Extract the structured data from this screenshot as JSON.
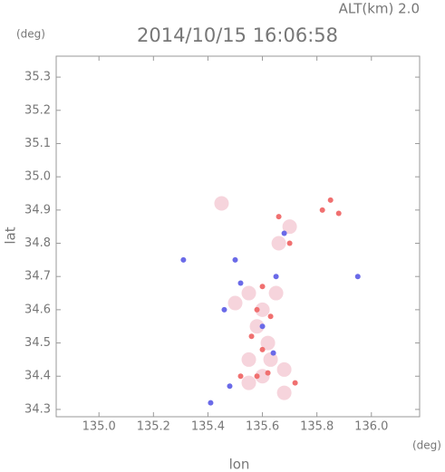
{
  "chart_data": {
    "type": "scatter",
    "title": "2014/10/15 16:06:58",
    "altitude_label": "ALT(km) 2.0",
    "x_label": "lon",
    "y_label": "lat",
    "x_unit": "(deg)",
    "y_unit": "(deg)",
    "xlim": [
      134.843,
      136.177
    ],
    "ylim": [
      34.278,
      35.363
    ],
    "xticks": [
      {
        "value": 135,
        "label": "135.0"
      },
      135.2,
      135.4,
      135.6,
      135.8,
      {
        "value": 136,
        "label": "136.0"
      }
    ],
    "yticks": [
      34.3,
      34.4,
      34.5,
      34.6,
      34.7,
      34.8,
      34.9,
      {
        "value": 35,
        "label": "35.0"
      },
      35.1,
      35.2,
      35.3
    ],
    "grid": false,
    "series": [
      {
        "color": "#f6d4dc",
        "x": [
          135.6,
          135.55,
          135.62,
          135.58,
          135.6,
          135.55,
          135.65,
          135.5,
          135.63,
          135.68,
          135.55,
          135.66,
          135.7,
          135.45,
          135.68
        ],
        "y": [
          34.4,
          34.45,
          34.5,
          34.55,
          34.6,
          34.65,
          34.65,
          34.62,
          34.45,
          34.42,
          34.38,
          34.8,
          34.85,
          34.92,
          34.35
        ]
      },
      {
        "color": "#f07070",
        "x": [
          135.58,
          135.62,
          135.52,
          135.6,
          135.63,
          135.58,
          135.56,
          135.66,
          135.85,
          135.82,
          135.88,
          135.7,
          135.6,
          135.72
        ],
        "y": [
          34.4,
          34.41,
          34.4,
          34.48,
          34.58,
          34.6,
          34.52,
          34.88,
          34.93,
          34.9,
          34.89,
          34.8,
          34.67,
          34.38
        ]
      },
      {
        "color": "#6a6ae8",
        "x": [
          135.41,
          135.95,
          135.48,
          135.52,
          135.6,
          135.65,
          135.68,
          135.46,
          135.5,
          135.31,
          135.64
        ],
        "y": [
          34.32,
          34.7,
          34.37,
          34.68,
          34.55,
          34.7,
          34.83,
          34.6,
          34.75,
          34.75,
          34.47
        ]
      }
    ]
  }
}
